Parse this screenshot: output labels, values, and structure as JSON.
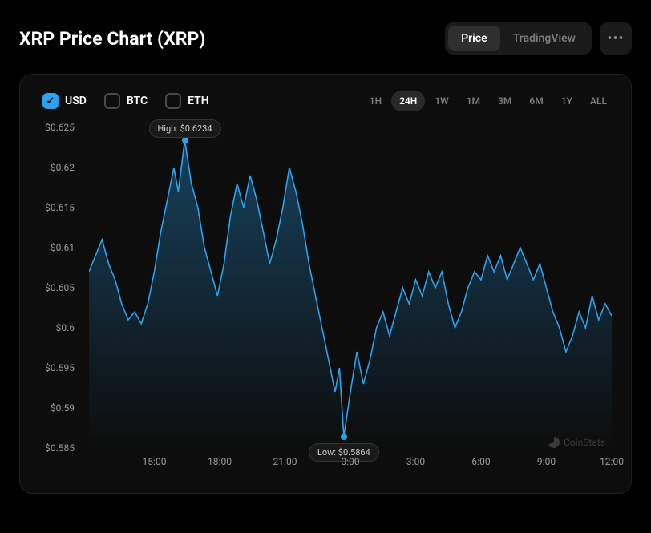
{
  "title": "XRP Price Chart (XRP)",
  "view_toggle": {
    "options": [
      "Price",
      "TradingView"
    ],
    "active": "Price"
  },
  "more_label": "•••",
  "currency_options": [
    {
      "label": "USD",
      "checked": true
    },
    {
      "label": "BTC",
      "checked": false
    },
    {
      "label": "ETH",
      "checked": false
    }
  ],
  "range_options": [
    "1H",
    "24H",
    "1W",
    "1M",
    "3M",
    "6M",
    "1Y",
    "ALL"
  ],
  "range_active": "24H",
  "watermark": "CoinStats",
  "chart": {
    "type": "line_area",
    "line_color": "#2aa3ef",
    "line_width": 1.6,
    "area_gradient_from": "#2aa3ef",
    "area_gradient_opacity_from": 0.35,
    "area_gradient_opacity_to": 0.0,
    "background_color": "#0d0d0d",
    "marker_color": "#2aa3ef",
    "y_axis": {
      "min": 0.585,
      "max": 0.625,
      "ticks": [
        0.585,
        0.59,
        0.595,
        0.6,
        0.605,
        0.61,
        0.615,
        0.62,
        0.625
      ],
      "labels": [
        "$0.585",
        "$0.59",
        "$0.595",
        "$0.6",
        "$0.605",
        "$0.61",
        "$0.615",
        "$0.62",
        "$0.625"
      ],
      "label_color": "#9a9a9a",
      "label_fontsize": 12
    },
    "x_axis": {
      "min_h": 12,
      "max_h": 36,
      "ticks_h": [
        15,
        18,
        21,
        24,
        27,
        30,
        33,
        36
      ],
      "labels": [
        "15:00",
        "18:00",
        "21:00",
        "0:00",
        "3:00",
        "6:00",
        "9:00",
        "12:00"
      ],
      "label_color": "#9a9a9a",
      "label_fontsize": 12
    },
    "high": {
      "label": "High: $0.6234",
      "t": 16.4,
      "v": 0.6234
    },
    "low": {
      "label": "Low: $0.5864",
      "t": 23.7,
      "v": 0.5864
    },
    "series": [
      [
        12.0,
        0.607
      ],
      [
        12.3,
        0.609
      ],
      [
        12.6,
        0.611
      ],
      [
        12.9,
        0.608
      ],
      [
        13.2,
        0.606
      ],
      [
        13.5,
        0.603
      ],
      [
        13.8,
        0.601
      ],
      [
        14.1,
        0.602
      ],
      [
        14.4,
        0.6005
      ],
      [
        14.7,
        0.603
      ],
      [
        15.0,
        0.607
      ],
      [
        15.3,
        0.612
      ],
      [
        15.6,
        0.616
      ],
      [
        15.9,
        0.62
      ],
      [
        16.1,
        0.617
      ],
      [
        16.4,
        0.6234
      ],
      [
        16.7,
        0.618
      ],
      [
        17.0,
        0.615
      ],
      [
        17.3,
        0.61
      ],
      [
        17.6,
        0.607
      ],
      [
        17.9,
        0.604
      ],
      [
        18.2,
        0.608
      ],
      [
        18.5,
        0.614
      ],
      [
        18.8,
        0.618
      ],
      [
        19.1,
        0.615
      ],
      [
        19.4,
        0.619
      ],
      [
        19.7,
        0.616
      ],
      [
        20.0,
        0.612
      ],
      [
        20.3,
        0.608
      ],
      [
        20.6,
        0.611
      ],
      [
        20.9,
        0.615
      ],
      [
        21.2,
        0.62
      ],
      [
        21.5,
        0.617
      ],
      [
        21.8,
        0.613
      ],
      [
        22.1,
        0.608
      ],
      [
        22.4,
        0.604
      ],
      [
        22.7,
        0.6
      ],
      [
        23.0,
        0.596
      ],
      [
        23.3,
        0.592
      ],
      [
        23.5,
        0.595
      ],
      [
        23.7,
        0.5864
      ],
      [
        24.0,
        0.592
      ],
      [
        24.3,
        0.597
      ],
      [
        24.6,
        0.593
      ],
      [
        24.9,
        0.596
      ],
      [
        25.2,
        0.6
      ],
      [
        25.5,
        0.602
      ],
      [
        25.8,
        0.599
      ],
      [
        26.1,
        0.602
      ],
      [
        26.4,
        0.605
      ],
      [
        26.7,
        0.603
      ],
      [
        27.0,
        0.606
      ],
      [
        27.3,
        0.604
      ],
      [
        27.6,
        0.607
      ],
      [
        27.9,
        0.605
      ],
      [
        28.2,
        0.607
      ],
      [
        28.5,
        0.603
      ],
      [
        28.8,
        0.6
      ],
      [
        29.1,
        0.602
      ],
      [
        29.4,
        0.605
      ],
      [
        29.7,
        0.607
      ],
      [
        30.0,
        0.606
      ],
      [
        30.3,
        0.609
      ],
      [
        30.6,
        0.607
      ],
      [
        30.9,
        0.609
      ],
      [
        31.2,
        0.606
      ],
      [
        31.5,
        0.608
      ],
      [
        31.8,
        0.61
      ],
      [
        32.1,
        0.608
      ],
      [
        32.4,
        0.606
      ],
      [
        32.7,
        0.608
      ],
      [
        33.0,
        0.605
      ],
      [
        33.3,
        0.602
      ],
      [
        33.6,
        0.6
      ],
      [
        33.9,
        0.597
      ],
      [
        34.2,
        0.599
      ],
      [
        34.5,
        0.602
      ],
      [
        34.8,
        0.6
      ],
      [
        35.1,
        0.604
      ],
      [
        35.4,
        0.601
      ],
      [
        35.7,
        0.603
      ],
      [
        36.0,
        0.6015
      ]
    ]
  }
}
